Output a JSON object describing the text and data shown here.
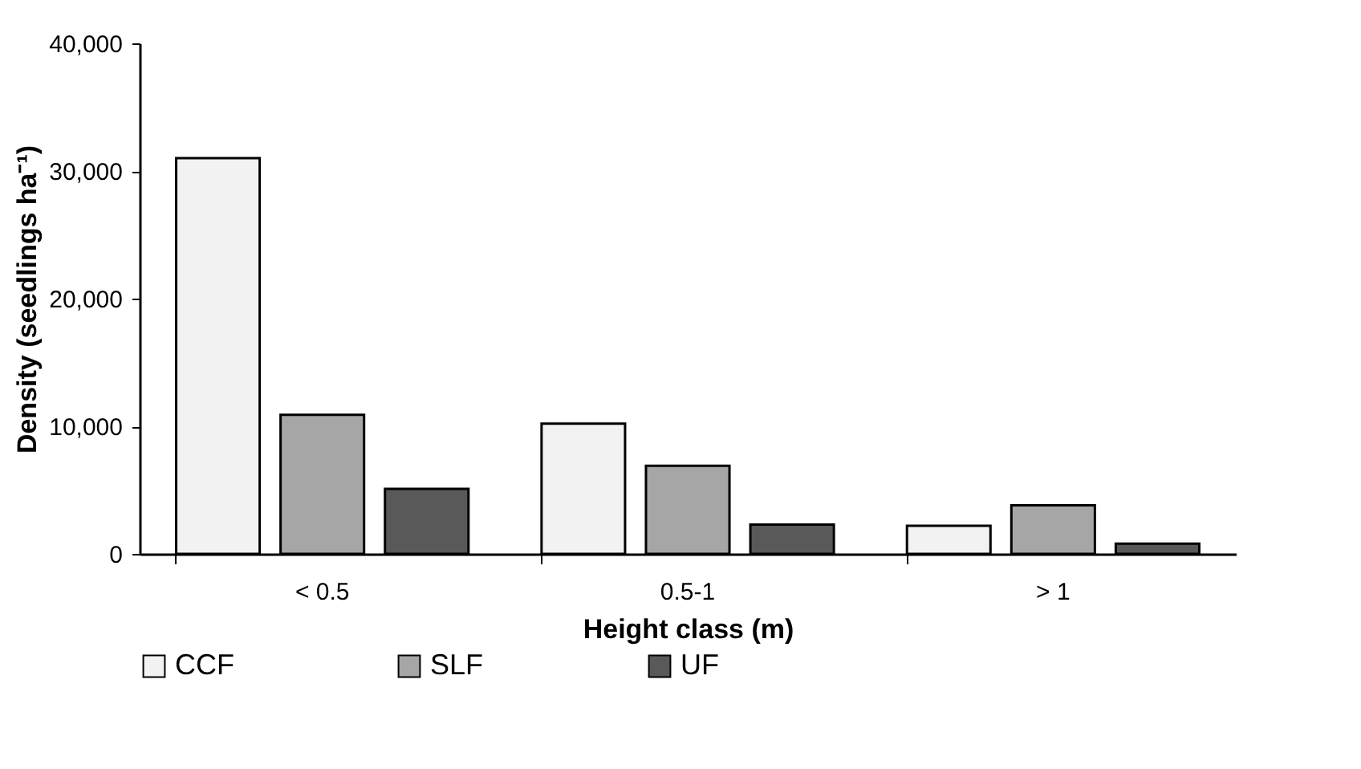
{
  "chart_data": {
    "type": "bar",
    "xlabel": "Height class (m)",
    "ylabel": "Density (seedlings ha⁻¹)",
    "categories": [
      "< 0.5",
      "0.5-1",
      "> 1"
    ],
    "series": [
      {
        "name": "CCF",
        "color": "#f2f2f2",
        "values": [
          31000,
          10200,
          2200
        ]
      },
      {
        "name": "SLF",
        "color": "#a6a6a6",
        "values": [
          10900,
          6900,
          3800
        ]
      },
      {
        "name": "UF",
        "color": "#595959",
        "values": [
          5100,
          2300,
          800
        ]
      }
    ],
    "ylim": [
      0,
      40000
    ],
    "yticks": [
      {
        "value": 0,
        "label": "0"
      },
      {
        "value": 10000,
        "label": "10,000"
      },
      {
        "value": 20000,
        "label": "20,000"
      },
      {
        "value": 30000,
        "label": "30,000"
      },
      {
        "value": 40000,
        "label": "40,000"
      }
    ],
    "grid": false,
    "legend": "bottom"
  }
}
